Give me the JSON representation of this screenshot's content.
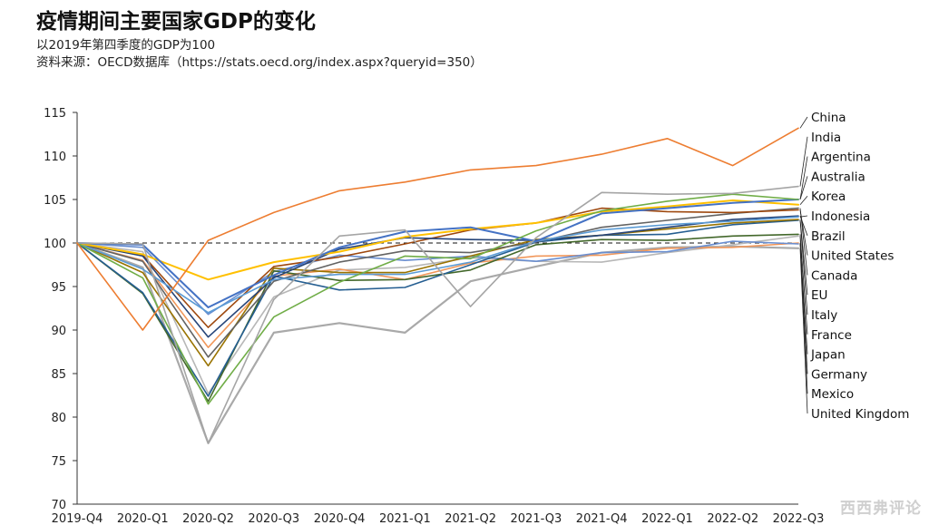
{
  "header": {
    "title": "疫情期间主要国家GDP的变化",
    "subtitle": "以2019年第四季度的GDP为100",
    "source": "资料来源：OECD数据库（https://stats.oecd.org/index.aspx?queryid=350）"
  },
  "watermark": "西西弗评论",
  "chart_data": {
    "type": "line",
    "title": "疫情期间主要国家GDP的变化",
    "xlabel": "",
    "ylabel": "",
    "categories": [
      "2019-Q4",
      "2020-Q1",
      "2020-Q2",
      "2020-Q3",
      "2020-Q4",
      "2021-Q1",
      "2021-Q2",
      "2021-Q3",
      "2021-Q4",
      "2022-Q1",
      "2022-Q2",
      "2022-Q3"
    ],
    "ylim": [
      70,
      115
    ],
    "yticks": [
      70,
      75,
      80,
      85,
      90,
      95,
      100,
      105,
      110,
      115
    ],
    "reference_line": 100,
    "grid": false,
    "legend": "right, labels stacked with leader lines",
    "series": [
      {
        "name": "China",
        "color": "#ED7D31",
        "width": 1.6,
        "values": [
          100,
          90.0,
          100.3,
          103.5,
          106.0,
          107.0,
          108.4,
          108.9,
          110.2,
          112.0,
          108.9,
          113.2
        ]
      },
      {
        "name": "India",
        "color": "#A5A5A5",
        "width": 1.6,
        "values": [
          100,
          99.9,
          77.0,
          93.5,
          100.8,
          101.5,
          92.7,
          100.6,
          105.8,
          105.6,
          105.7,
          106.5
        ]
      },
      {
        "name": "Argentina",
        "color": "#70AD47",
        "width": 1.6,
        "values": [
          100,
          96.0,
          81.5,
          91.5,
          95.5,
          98.5,
          98.2,
          101.4,
          103.7,
          104.8,
          105.6,
          105.0
        ]
      },
      {
        "name": "Australia",
        "color": "#4472C4",
        "width": 2.0,
        "values": [
          100,
          99.8,
          92.6,
          96.3,
          99.5,
          101.3,
          101.8,
          100.2,
          103.4,
          104.0,
          104.6,
          105.0
        ]
      },
      {
        "name": "Korea",
        "color": "#FFC000",
        "width": 2.0,
        "values": [
          100,
          98.7,
          95.8,
          97.8,
          99.0,
          100.7,
          101.6,
          102.3,
          103.6,
          104.2,
          104.9,
          104.4
        ]
      },
      {
        "name": "Indonesia",
        "color": "#5B9BD5",
        "width": 1.6,
        "values": [
          100,
          97.0,
          92.0,
          95.8,
          96.4,
          96.4,
          97.8,
          100.2,
          101.5,
          102.1,
          102.5,
          103.0
        ]
      },
      {
        "name": "Brazil",
        "color": "#264478",
        "width": 1.6,
        "values": [
          100,
          98.5,
          89.2,
          96.0,
          99.3,
          100.6,
          100.4,
          100.3,
          100.9,
          101.8,
          102.7,
          103.1
        ]
      },
      {
        "name": "United States",
        "color": "#9E480E",
        "width": 1.6,
        "values": [
          100,
          98.6,
          90.3,
          97.3,
          98.4,
          99.9,
          101.5,
          102.3,
          104.0,
          103.6,
          103.5,
          103.8
        ]
      },
      {
        "name": "Canada",
        "color": "#636363",
        "width": 1.6,
        "values": [
          100,
          97.9,
          86.9,
          95.6,
          97.8,
          99.1,
          98.9,
          100.1,
          101.8,
          102.6,
          103.4,
          104.0
        ]
      },
      {
        "name": "EU",
        "color": "#997300",
        "width": 1.6,
        "values": [
          100,
          96.6,
          85.9,
          97.1,
          96.6,
          96.6,
          98.5,
          100.4,
          100.9,
          101.6,
          102.3,
          102.7
        ]
      },
      {
        "name": "Italy",
        "color": "#255E91",
        "width": 1.6,
        "values": [
          100,
          94.3,
          82.4,
          96.2,
          94.6,
          94.9,
          97.5,
          100.1,
          100.9,
          101.0,
          102.1,
          102.6
        ]
      },
      {
        "name": "France",
        "color": "#43682B",
        "width": 1.6,
        "values": [
          100,
          94.2,
          81.8,
          96.8,
          95.7,
          95.8,
          96.9,
          99.8,
          100.4,
          100.3,
          100.8,
          101.0
        ]
      },
      {
        "name": "Japan",
        "color": "#698ED0",
        "width": 1.6,
        "values": [
          100,
          99.5,
          91.8,
          96.7,
          98.6,
          98.0,
          98.5,
          97.9,
          98.9,
          99.0,
          100.2,
          99.9
        ]
      },
      {
        "name": "Germany",
        "color": "#F1975A",
        "width": 1.6,
        "values": [
          100,
          98.0,
          88.0,
          96.2,
          97.0,
          95.8,
          97.7,
          98.5,
          98.6,
          99.4,
          99.5,
          100.0
        ]
      },
      {
        "name": "Mexico",
        "color": "#B7B7B7",
        "width": 1.6,
        "values": [
          100,
          99.0,
          82.7,
          93.8,
          96.9,
          97.2,
          98.3,
          97.9,
          97.8,
          98.9,
          99.8,
          100.8
        ]
      },
      {
        "name": "United Kingdom",
        "color": "#A9A9A9",
        "width": 2.2,
        "values": [
          100,
          97.2,
          77.0,
          89.7,
          90.8,
          89.7,
          95.6,
          97.3,
          98.9,
          99.5,
          99.6,
          99.4
        ]
      }
    ]
  }
}
